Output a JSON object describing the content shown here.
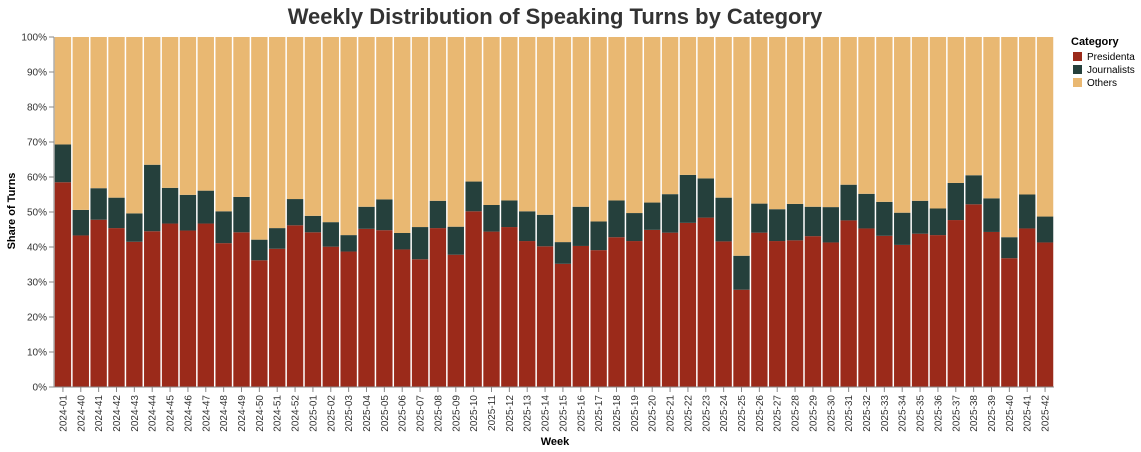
{
  "chart_data": {
    "type": "bar",
    "stacked": "normalize",
    "title": "Weekly Distribution of Speaking Turns by Category",
    "xlabel": "Week",
    "ylabel": "Share of Turns",
    "ylim": [
      0,
      1
    ],
    "y_ticks": [
      "0%",
      "10%",
      "20%",
      "30%",
      "40%",
      "50%",
      "60%",
      "70%",
      "80%",
      "90%",
      "100%"
    ],
    "grid": false,
    "legend_position": "top-right",
    "legend_title": "Category",
    "categories": [
      "2024-01",
      "2024-40",
      "2024-41",
      "2024-42",
      "2024-43",
      "2024-44",
      "2024-45",
      "2024-46",
      "2024-47",
      "2024-48",
      "2024-49",
      "2024-50",
      "2024-51",
      "2024-52",
      "2025-01",
      "2025-02",
      "2025-03",
      "2025-04",
      "2025-05",
      "2025-06",
      "2025-07",
      "2025-08",
      "2025-09",
      "2025-10",
      "2025-11",
      "2025-12",
      "2025-13",
      "2025-14",
      "2025-15",
      "2025-16",
      "2025-17",
      "2025-18",
      "2025-19",
      "2025-20",
      "2025-21",
      "2025-22",
      "2025-23",
      "2025-24",
      "2025-25",
      "2025-26",
      "2025-27",
      "2025-28",
      "2025-29",
      "2025-30",
      "2025-31",
      "2025-32",
      "2025-33",
      "2025-34",
      "2025-35",
      "2025-36",
      "2025-37",
      "2025-38",
      "2025-39",
      "2025-40",
      "2025-41",
      "2025-42"
    ],
    "series": [
      {
        "name": "Presidenta",
        "color": "#9b2a1a",
        "values": [
          0.585,
          0.433,
          0.478,
          0.454,
          0.415,
          0.445,
          0.467,
          0.447,
          0.467,
          0.411,
          0.442,
          0.362,
          0.395,
          0.462,
          0.442,
          0.401,
          0.387,
          0.452,
          0.448,
          0.393,
          0.365,
          0.454,
          0.378,
          0.502,
          0.444,
          0.457,
          0.417,
          0.402,
          0.352,
          0.403,
          0.391,
          0.428,
          0.417,
          0.449,
          0.441,
          0.469,
          0.484,
          0.416,
          0.278,
          0.441,
          0.417,
          0.419,
          0.431,
          0.413,
          0.476,
          0.453,
          0.432,
          0.406,
          0.438,
          0.434,
          0.477,
          0.522,
          0.443,
          0.368,
          0.453,
          0.413
        ]
      },
      {
        "name": "Journalists",
        "color": "#25403c",
        "values": [
          0.108,
          0.073,
          0.09,
          0.087,
          0.081,
          0.19,
          0.102,
          0.102,
          0.094,
          0.091,
          0.101,
          0.059,
          0.059,
          0.075,
          0.047,
          0.07,
          0.047,
          0.063,
          0.088,
          0.047,
          0.092,
          0.078,
          0.08,
          0.085,
          0.076,
          0.076,
          0.085,
          0.09,
          0.062,
          0.112,
          0.082,
          0.105,
          0.08,
          0.078,
          0.11,
          0.137,
          0.112,
          0.125,
          0.097,
          0.083,
          0.091,
          0.104,
          0.084,
          0.101,
          0.102,
          0.099,
          0.097,
          0.092,
          0.094,
          0.076,
          0.106,
          0.083,
          0.096,
          0.06,
          0.097,
          0.074
        ]
      },
      {
        "name": "Others",
        "color": "#e9b872",
        "values": [
          0.307,
          0.494,
          0.432,
          0.459,
          0.504,
          0.365,
          0.431,
          0.451,
          0.439,
          0.498,
          0.457,
          0.579,
          0.546,
          0.463,
          0.511,
          0.529,
          0.566,
          0.485,
          0.464,
          0.56,
          0.543,
          0.468,
          0.542,
          0.413,
          0.48,
          0.467,
          0.498,
          0.508,
          0.586,
          0.485,
          0.527,
          0.467,
          0.503,
          0.473,
          0.449,
          0.394,
          0.404,
          0.459,
          0.625,
          0.476,
          0.492,
          0.477,
          0.485,
          0.486,
          0.422,
          0.448,
          0.471,
          0.502,
          0.468,
          0.49,
          0.417,
          0.395,
          0.461,
          0.572,
          0.45,
          0.513
        ]
      }
    ]
  }
}
